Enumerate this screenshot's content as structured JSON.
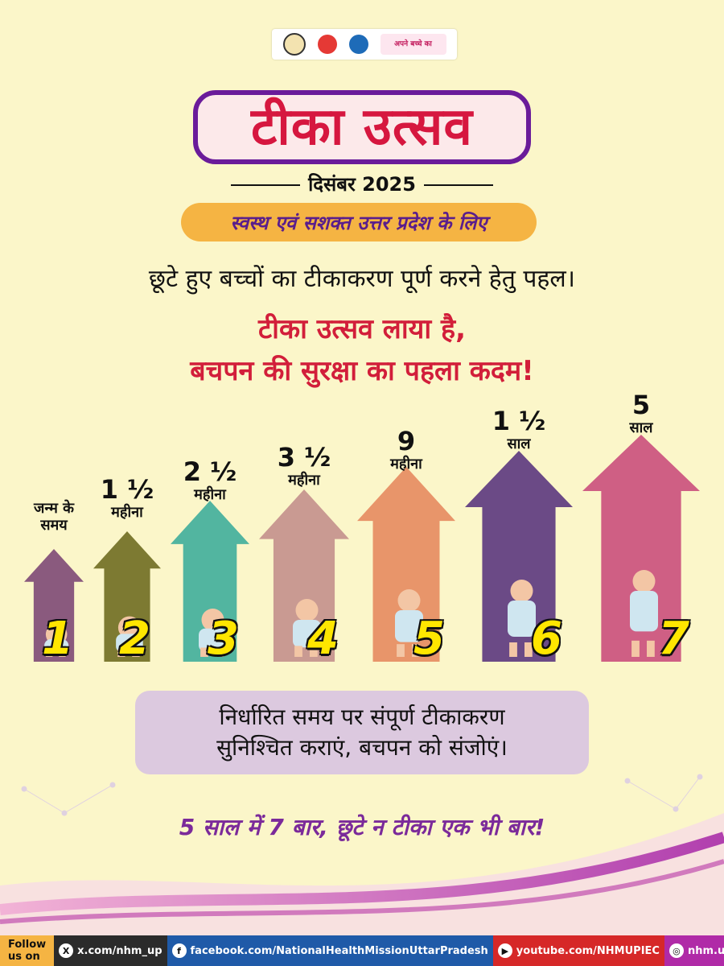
{
  "header": {
    "logos": [
      "up-govt-emblem-icon",
      "nhm-logo-icon",
      "immunization-logo-icon",
      "campaign-slogan-logo"
    ],
    "slogan_logo_text": "अपने बच्चे का"
  },
  "title": "टीका उत्सव",
  "date": "दिसंबर 2025",
  "pill": "स्वस्थ एवं सशक्त उत्तर प्रदेश के लिए",
  "line1": "छूटे हुए बच्चों का टीकाकरण पूर्ण करने हेतु पहल।",
  "line2": "टीका उत्सव लाया है,",
  "line3": "बचपन की सुरक्षा का पहला कदम!",
  "stages": [
    {
      "num": "1",
      "age_big": "",
      "age_small": "जन्म के\nसमय",
      "color": "#8a5a7e"
    },
    {
      "num": "2",
      "age_big": "1 ½",
      "age_small": "महीना",
      "color": "#7d7a32"
    },
    {
      "num": "3",
      "age_big": "2 ½",
      "age_small": "महीना",
      "color": "#52b5a0"
    },
    {
      "num": "4",
      "age_big": "3 ½",
      "age_small": "महीना",
      "color": "#c99a92"
    },
    {
      "num": "5",
      "age_big": "9",
      "age_small": "महीना",
      "color": "#e8956a"
    },
    {
      "num": "6",
      "age_big": "1 ½",
      "age_small": "साल",
      "color": "#6b4a86"
    },
    {
      "num": "7",
      "age_big": "5",
      "age_small": "साल",
      "color": "#cf5f84"
    }
  ],
  "message": {
    "line1": "निर्धारित समय पर संपूर्ण टीकाकरण",
    "line2": "सुनिश्चित कराएं, बचपन को संजोएं।"
  },
  "tagline": "5 साल में 7 बार, छूटे न टीका एक भी बार!",
  "footer": {
    "follow": "Follow us on",
    "x": "x.com/nhm_up",
    "facebook": "facebook.com/NationalHealthMissionUttarPradesh",
    "youtube": "youtube.com/NHMUPIEC",
    "instagram": "nhm.up"
  }
}
